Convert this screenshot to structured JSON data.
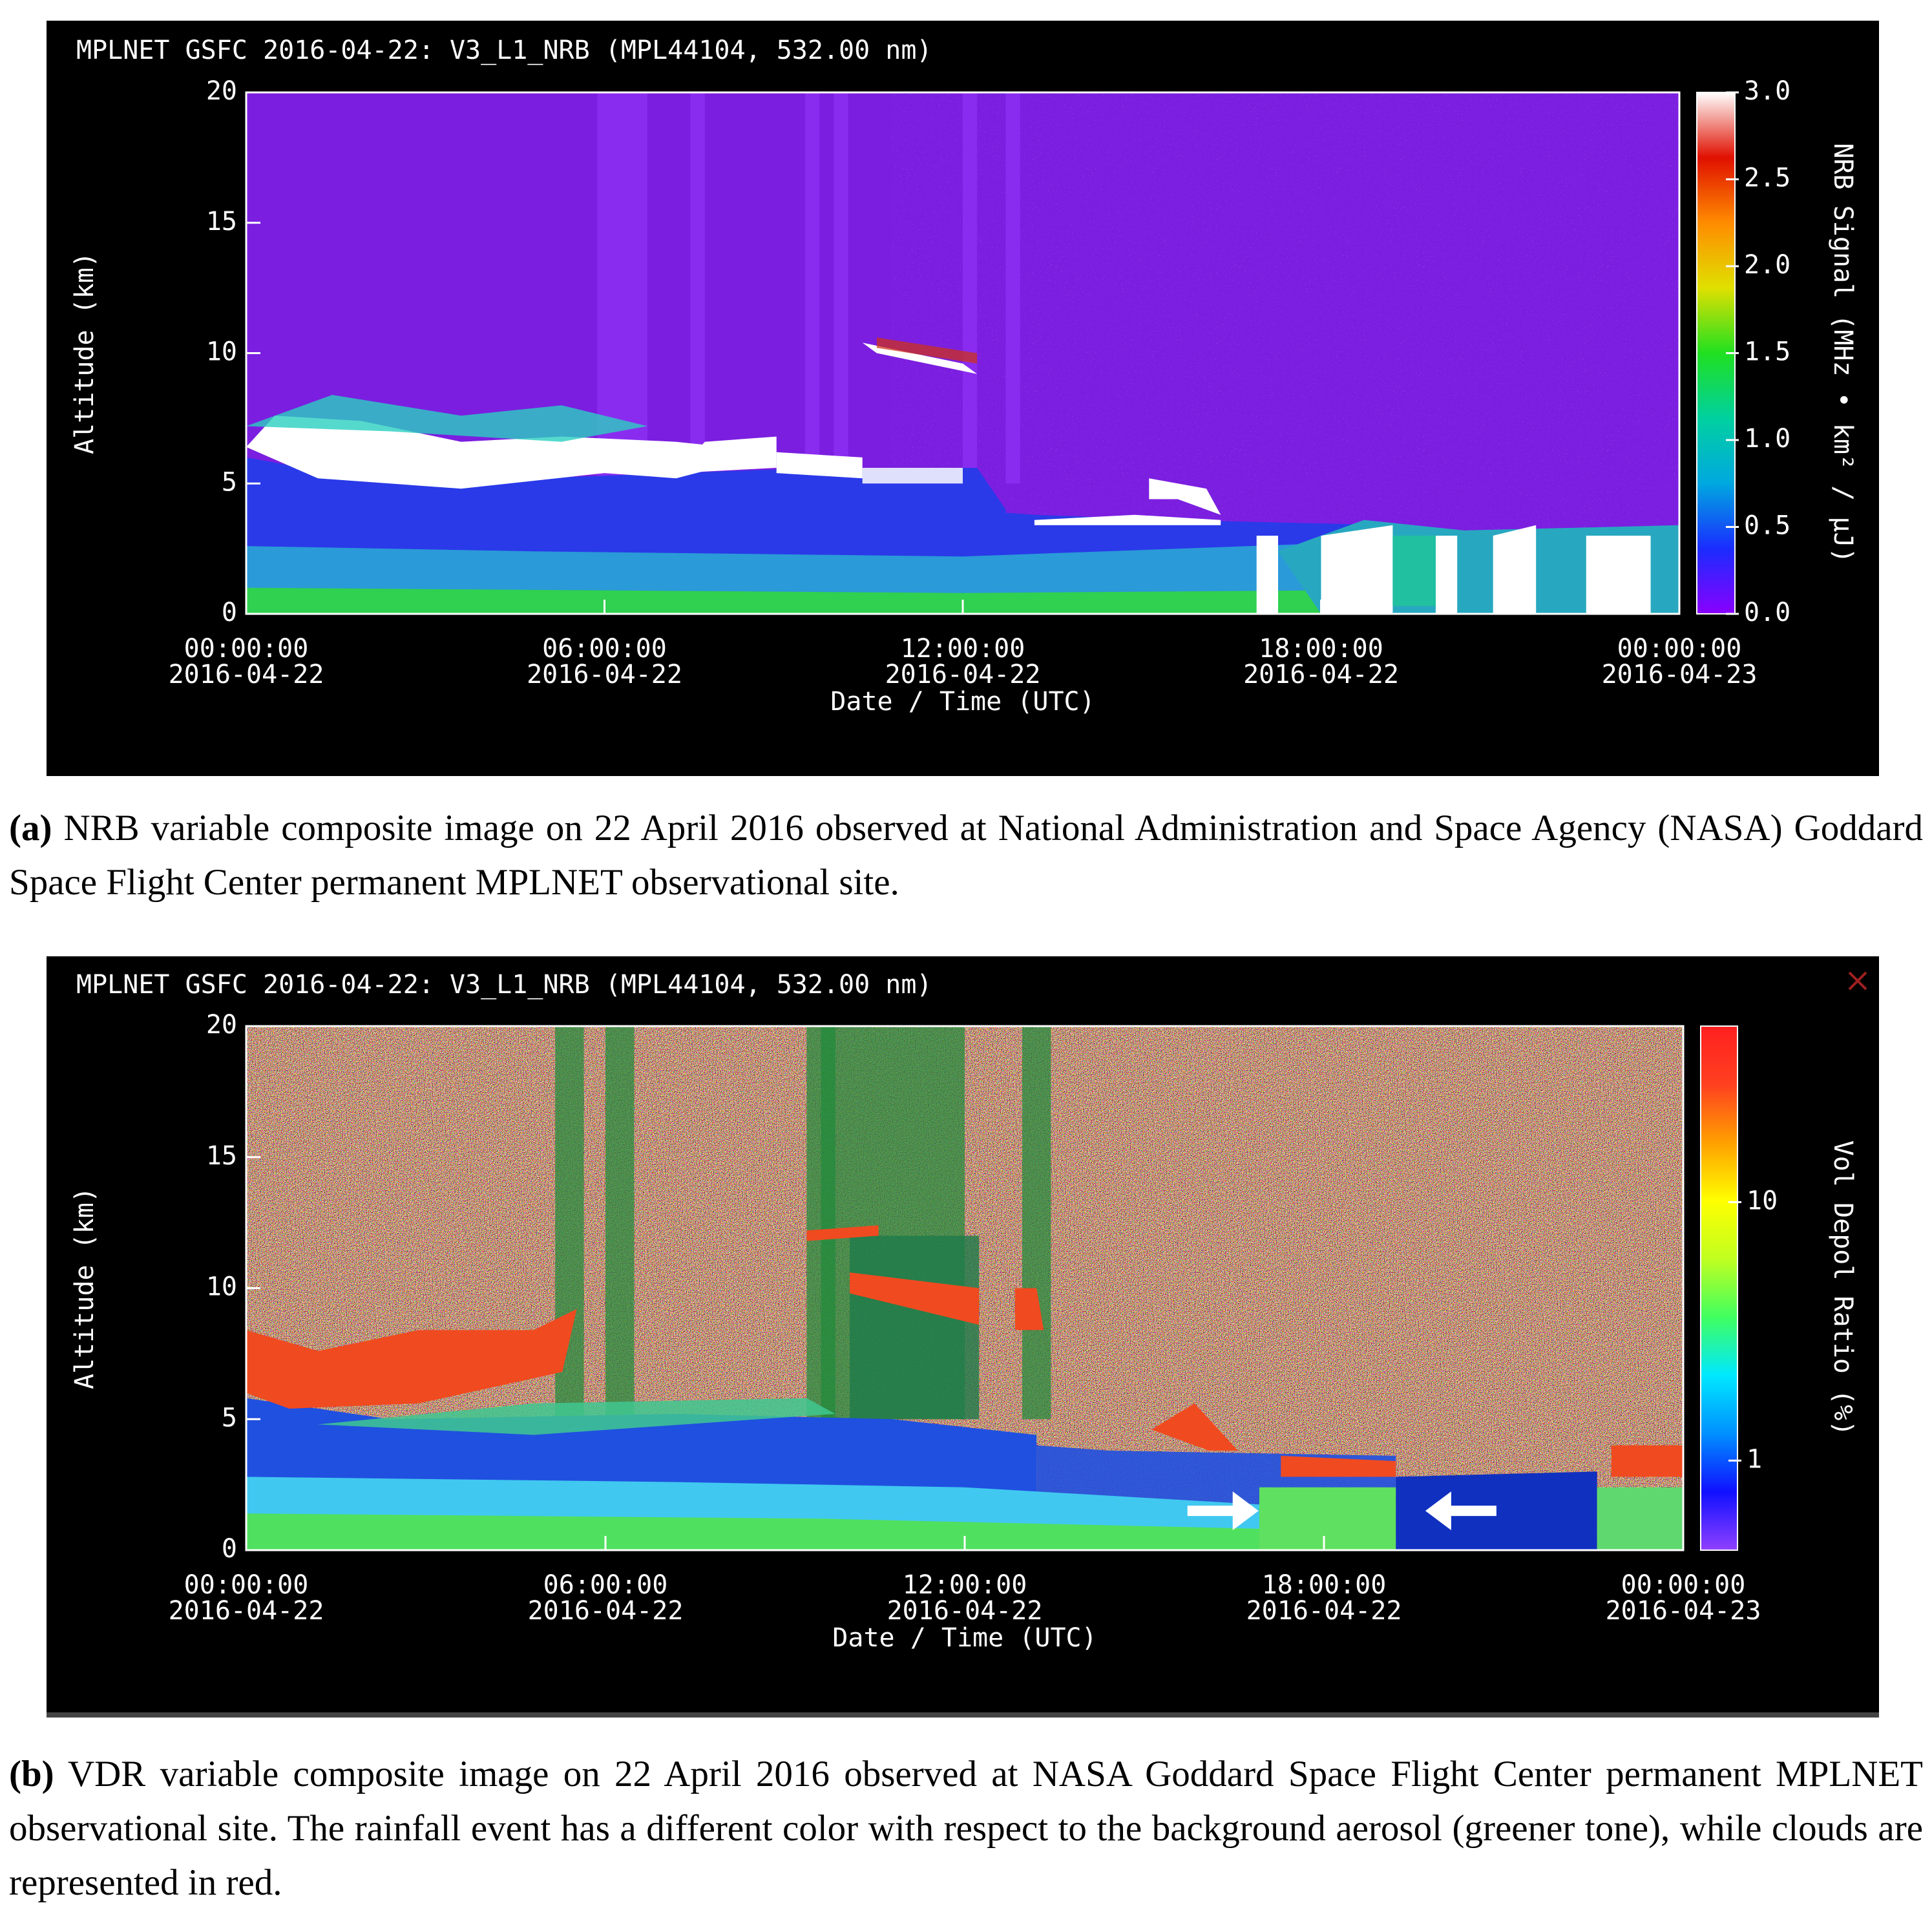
{
  "chart_data": [
    {
      "type": "heatmap",
      "title": "MPLNET GSFC 2016-04-22:  V3_L1_NRB  (MPL44104, 532.00 nm)",
      "xlabel": "Date / Time (UTC)",
      "ylabel": "Altitude (km)",
      "xlim": [
        "2016-04-22T00:00:00",
        "2016-04-23T00:00:00"
      ],
      "xticks": [
        {
          "value": "2016-04-22T00:00:00",
          "label": [
            "00:00:00",
            "2016-04-22"
          ]
        },
        {
          "value": "2016-04-22T06:00:00",
          "label": [
            "06:00:00",
            "2016-04-22"
          ]
        },
        {
          "value": "2016-04-22T12:00:00",
          "label": [
            "12:00:00",
            "2016-04-22"
          ]
        },
        {
          "value": "2016-04-22T18:00:00",
          "label": [
            "18:00:00",
            "2016-04-22"
          ]
        },
        {
          "value": "2016-04-23T00:00:00",
          "label": [
            "00:00:00",
            "2016-04-23"
          ]
        }
      ],
      "ylim": [
        0,
        20
      ],
      "yticks": [
        0,
        5,
        10,
        15,
        20
      ],
      "colorbar": {
        "label": "NRB Signal (MHz • km² / µJ)",
        "scale": "linear",
        "lim": [
          0,
          3
        ],
        "ticks": [
          {
            "value": 0,
            "label": "0.0"
          },
          {
            "value": 0.5,
            "label": "0.5"
          },
          {
            "value": 1,
            "label": "1.0"
          },
          {
            "value": 1.5,
            "label": "1.5"
          },
          {
            "value": 2,
            "label": "2.0"
          },
          {
            "value": 2.5,
            "label": "2.5"
          },
          {
            "value": 3,
            "label": "3.0"
          }
        ],
        "colors": [
          "#8a00ff",
          "#1a2cff",
          "#00a8e0",
          "#00d0a0",
          "#20e020",
          "#e0e000",
          "#ff8c00",
          "#e01000",
          "#ffffff"
        ]
      }
    },
    {
      "type": "heatmap",
      "title": "MPLNET GSFC 2016-04-22:  V3_L1_NRB  (MPL44104, 532.00 nm)",
      "xlabel": "Date / Time (UTC)",
      "ylabel": "Altitude (km)",
      "xlim": [
        "2016-04-22T00:00:00",
        "2016-04-23T00:00:00"
      ],
      "xticks": [
        {
          "value": "2016-04-22T00:00:00",
          "label": [
            "00:00:00",
            "2016-04-22"
          ]
        },
        {
          "value": "2016-04-22T06:00:00",
          "label": [
            "06:00:00",
            "2016-04-22"
          ]
        },
        {
          "value": "2016-04-22T12:00:00",
          "label": [
            "12:00:00",
            "2016-04-22"
          ]
        },
        {
          "value": "2016-04-22T18:00:00",
          "label": [
            "18:00:00",
            "2016-04-22"
          ]
        },
        {
          "value": "2016-04-23T00:00:00",
          "label": [
            "00:00:00",
            "2016-04-23"
          ]
        }
      ],
      "ylim": [
        0,
        20
      ],
      "yticks": [
        0,
        5,
        10,
        15,
        20
      ],
      "colorbar": {
        "label": "Vol Depol Ratio (%)",
        "scale": "log",
        "lim": [
          0.45,
          48
        ],
        "ticks": [
          1,
          10
        ],
        "colors": [
          "#9040ff",
          "#1010ff",
          "#0090ff",
          "#00e8ff",
          "#40ff60",
          "#c0ff20",
          "#ffff00",
          "#ffa000",
          "#ff4020",
          "#ff2020"
        ]
      }
    }
  ],
  "captions": [
    {
      "label": "(a)",
      "text": "NRB variable composite image on 22 April 2016 observed at National Administration and Space Agency (NASA) Goddard Space Flight Center permanent MPLNET observational site."
    },
    {
      "label": "(b)",
      "text": "VDR variable composite image on 22 April 2016 observed at NASA Goddard Space Flight Center permanent MPLNET observational site.  The rainfall event has a different color with respect to the background aerosol (greener tone), while clouds are represented in red."
    }
  ]
}
